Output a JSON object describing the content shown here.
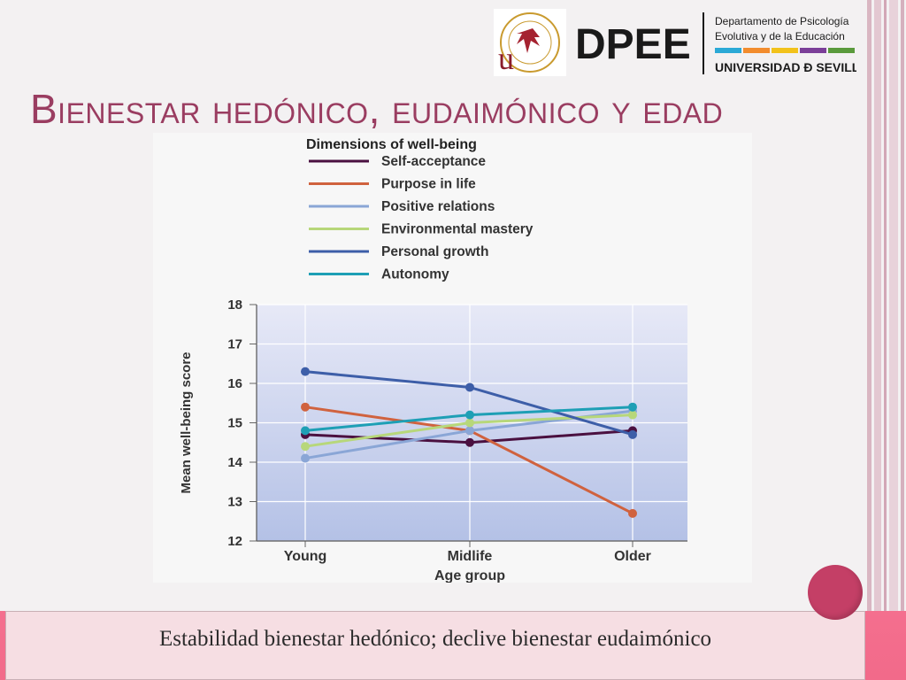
{
  "header": {
    "logo_seal_text": "UNIVERSIDAD DE SEVILLA",
    "logo_letter": "u",
    "dept_acronym": "DPEE",
    "dept_name_line1": "Departamento de Psicología",
    "dept_name_line2": "Evolutiva y de la Educación",
    "university": "UNIVERSIDAD Ð SEVILLA",
    "stripe_colors": [
      "#2ba9d6",
      "#f28c2e",
      "#f2c21b",
      "#7b3f98",
      "#5a9a3c"
    ]
  },
  "slide_title": "Bienestar hedónico, eudaimónico y edad",
  "caption": "Estabilidad bienestar hedónico; declive bienestar eudaimónico",
  "colors": {
    "accent": "#9a3d61",
    "border_pink": "#f26a8a",
    "plot_bg_top": "#e7e9f7",
    "plot_bg_bottom": "#b4c1e6"
  },
  "chart_data": {
    "type": "line",
    "legend_title": "Dimensions of well-being",
    "legend_placement": "top",
    "xlabel": "Age group",
    "ylabel": "Mean well-being score",
    "categories": [
      "Young",
      "Midlife",
      "Older"
    ],
    "ylim": [
      12,
      18
    ],
    "yticks": [
      "12",
      "13",
      "14",
      "15",
      "16",
      "17",
      "18"
    ],
    "grid": true,
    "series": [
      {
        "name": "Self-acceptance",
        "color": "#4a1040",
        "values": [
          14.7,
          14.5,
          14.8
        ]
      },
      {
        "name": "Purpose in life",
        "color": "#d0623e",
        "values": [
          15.4,
          14.8,
          12.7
        ]
      },
      {
        "name": "Positive relations",
        "color": "#8aa6d6",
        "values": [
          14.1,
          14.8,
          15.3
        ]
      },
      {
        "name": "Environmental mastery",
        "color": "#b7d77a",
        "values": [
          14.4,
          15.0,
          15.2
        ]
      },
      {
        "name": "Personal growth",
        "color": "#3d5ea8",
        "values": [
          16.3,
          15.9,
          14.7
        ]
      },
      {
        "name": "Autonomy",
        "color": "#1e9fb5",
        "values": [
          14.8,
          15.2,
          15.4
        ]
      }
    ]
  }
}
